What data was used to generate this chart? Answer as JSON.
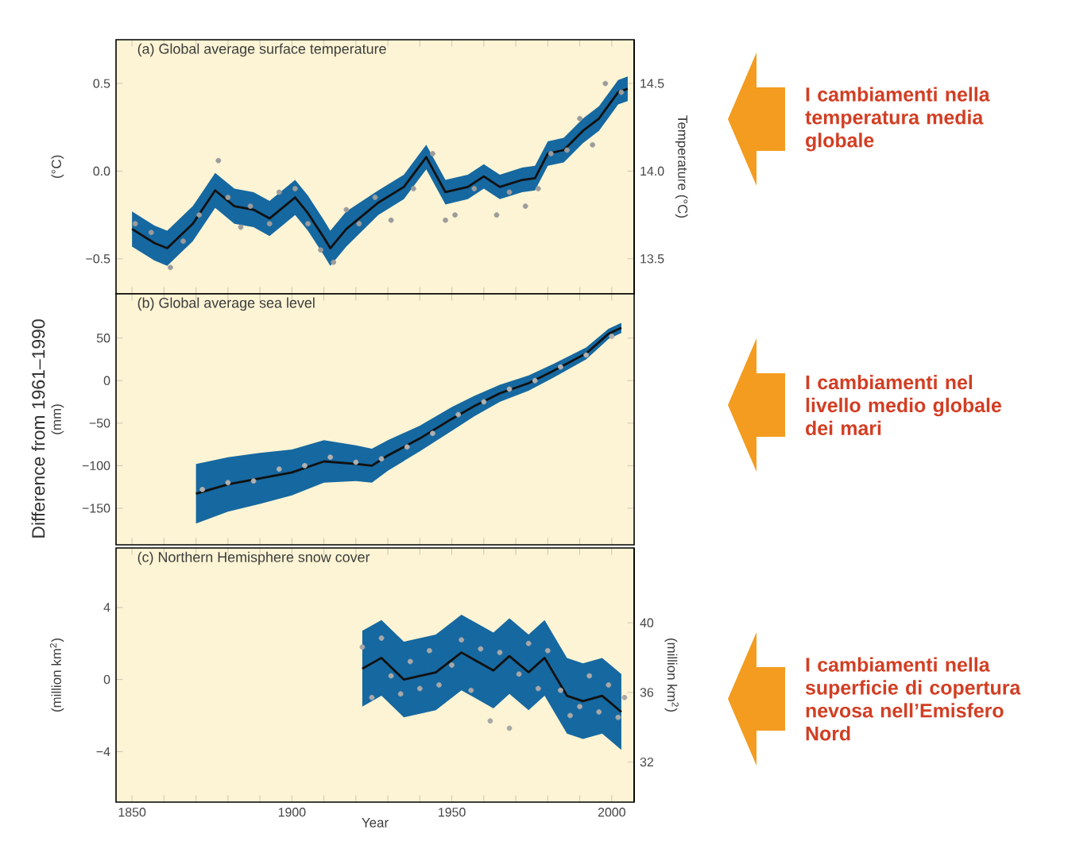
{
  "chart_data": [
    {
      "type": "line",
      "title": "(a) Global average surface temperature",
      "ylabel": "(°C)",
      "y2label": "Temperature (°C)",
      "annotations": [
        "I cambiamenti nella temperatura media globale"
      ],
      "xlim": [
        1845,
        2007
      ],
      "ylim": [
        -0.7,
        0.75
      ],
      "y2lim": [
        13.3,
        14.75
      ],
      "tick_labels": "y",
      "xticks": [
        {
          "value": 1850,
          "label": null
        },
        {
          "value": 1860,
          "label": null
        },
        {
          "value": 1870,
          "label": null
        },
        {
          "value": 1880,
          "label": null
        },
        {
          "value": 1890,
          "label": null
        },
        {
          "value": 1900,
          "label": null
        },
        {
          "value": 1910,
          "label": null
        },
        {
          "value": 1920,
          "label": null
        },
        {
          "value": 1930,
          "label": null
        },
        {
          "value": 1940,
          "label": null
        },
        {
          "value": 1950,
          "label": null
        },
        {
          "value": 1960,
          "label": null
        },
        {
          "value": 1970,
          "label": null
        },
        {
          "value": 1980,
          "label": null
        },
        {
          "value": 1990,
          "label": null
        },
        {
          "value": 2000,
          "label": null
        }
      ],
      "yticks": [
        {
          "value": -0.5,
          "label": "−0.5"
        },
        {
          "value": 0,
          "label": "0.0"
        },
        {
          "value": 0.5,
          "label": "0.5"
        }
      ],
      "y2ticks": [
        {
          "value": 13.5,
          "label": "13.5"
        },
        {
          "value": 14,
          "label": "14.0"
        },
        {
          "value": 14.5,
          "label": "14.5"
        }
      ],
      "series": [
        {
          "color": "#111111",
          "x": [
            1850,
            1857,
            1861,
            1869,
            1876,
            1882,
            1888,
            1893,
            1901,
            1905,
            1910,
            1912,
            1917,
            1927,
            1935,
            1942,
            1948,
            1955,
            1960,
            1965,
            1972,
            1976,
            1980,
            1985,
            1991,
            1996,
            2002,
            2005
          ],
          "values": [
            -0.33,
            -0.41,
            -0.44,
            -0.3,
            -0.11,
            -0.2,
            -0.22,
            -0.27,
            -0.15,
            -0.24,
            -0.38,
            -0.44,
            -0.33,
            -0.18,
            -0.09,
            0.08,
            -0.12,
            -0.09,
            -0.03,
            -0.09,
            -0.05,
            -0.04,
            0.1,
            0.12,
            0.23,
            0.3,
            0.45,
            0.47
          ],
          "lower": [
            -0.43,
            -0.51,
            -0.54,
            -0.4,
            -0.21,
            -0.3,
            -0.32,
            -0.37,
            -0.25,
            -0.34,
            -0.48,
            -0.54,
            -0.43,
            -0.25,
            -0.16,
            0.01,
            -0.19,
            -0.16,
            -0.1,
            -0.16,
            -0.12,
            -0.11,
            0.03,
            0.05,
            0.16,
            0.23,
            0.38,
            0.4
          ],
          "upper": [
            -0.23,
            -0.31,
            -0.34,
            -0.2,
            -0.01,
            -0.1,
            -0.12,
            -0.17,
            -0.05,
            -0.14,
            -0.28,
            -0.34,
            -0.23,
            -0.11,
            -0.02,
            0.15,
            -0.05,
            -0.02,
            0.04,
            -0.02,
            0.02,
            0.03,
            0.17,
            0.19,
            0.3,
            0.37,
            0.52,
            0.54
          ]
        },
        {
          "type": "scatter",
          "color": "#9c9c9c",
          "x": [
            1851,
            1856,
            1862,
            1866,
            1871,
            1877,
            1880,
            1884,
            1887,
            1893,
            1896,
            1901,
            1905,
            1909,
            1913,
            1917,
            1921,
            1926,
            1931,
            1938,
            1944,
            1948,
            1951,
            1957,
            1964,
            1968,
            1973,
            1977,
            1981,
            1986,
            1990,
            1994,
            1998,
            2003
          ],
          "values": [
            -0.3,
            -0.35,
            -0.55,
            -0.4,
            -0.25,
            0.06,
            -0.15,
            -0.32,
            -0.2,
            -0.3,
            -0.12,
            -0.1,
            -0.3,
            -0.45,
            -0.52,
            -0.22,
            -0.3,
            -0.15,
            -0.28,
            -0.1,
            0.1,
            -0.28,
            -0.25,
            -0.1,
            -0.25,
            -0.12,
            -0.2,
            -0.1,
            0.1,
            0.12,
            0.3,
            0.15,
            0.5,
            0.45
          ]
        }
      ]
    },
    {
      "type": "line",
      "title": "(b) Global average sea level",
      "ylabel": "(mm)",
      "annotations": [
        "I cambiamenti nel livello medio globale dei mari",
        "Difference from 1961–1990"
      ],
      "xlim": [
        1845,
        2007
      ],
      "ylim": [
        -193,
        102
      ],
      "tick_labels": "y",
      "xticks": [
        {
          "value": 1850,
          "label": null
        },
        {
          "value": 1860,
          "label": null
        },
        {
          "value": 1870,
          "label": null
        },
        {
          "value": 1880,
          "label": null
        },
        {
          "value": 1890,
          "label": null
        },
        {
          "value": 1900,
          "label": null
        },
        {
          "value": 1910,
          "label": null
        },
        {
          "value": 1920,
          "label": null
        },
        {
          "value": 1930,
          "label": null
        },
        {
          "value": 1940,
          "label": null
        },
        {
          "value": 1950,
          "label": null
        },
        {
          "value": 1960,
          "label": null
        },
        {
          "value": 1970,
          "label": null
        },
        {
          "value": 1980,
          "label": null
        },
        {
          "value": 1990,
          "label": null
        },
        {
          "value": 2000,
          "label": null
        }
      ],
      "yticks": [
        {
          "value": -150,
          "label": "−150"
        },
        {
          "value": -100,
          "label": "−100"
        },
        {
          "value": -50,
          "label": "−50"
        },
        0,
        50
      ],
      "series": [
        {
          "color": "#111111",
          "x": [
            1870,
            1880,
            1890,
            1900,
            1910,
            1920,
            1925,
            1930,
            1940,
            1950,
            1957,
            1965,
            1974,
            1982,
            1992,
            1999,
            2003
          ],
          "values": [
            -133,
            -122,
            -115,
            -108,
            -95,
            -98,
            -100,
            -88,
            -68,
            -45,
            -30,
            -15,
            -3,
            12,
            32,
            55,
            62
          ],
          "lower": [
            -168,
            -154,
            -145,
            -135,
            -120,
            -118,
            -120,
            -106,
            -83,
            -59,
            -42,
            -25,
            -12,
            4,
            25,
            49,
            56
          ],
          "upper": [
            -98,
            -90,
            -85,
            -81,
            -70,
            -76,
            -80,
            -70,
            -53,
            -31,
            -18,
            -5,
            6,
            20,
            39,
            61,
            68
          ]
        },
        {
          "type": "scatter",
          "color": "#b0b0b0",
          "x": [
            1872,
            1880,
            1888,
            1896,
            1904,
            1912,
            1920,
            1928,
            1936,
            1944,
            1952,
            1960,
            1968,
            1976,
            1984,
            1992,
            2000
          ],
          "values": [
            -128,
            -120,
            -118,
            -104,
            -100,
            -90,
            -96,
            -92,
            -78,
            -62,
            -40,
            -25,
            -10,
            0,
            16,
            30,
            52
          ]
        }
      ]
    },
    {
      "type": "line",
      "title": "(c) Northern Hemisphere snow cover",
      "ylabel": "(million km$^{2}$)",
      "y2label": "(million km$^{2}$)",
      "xlabel": "Year",
      "annotations": [
        "I cambiamenti nella superficie di copertura nevosa nell’Emisfero Nord"
      ],
      "xlim": [
        1845,
        2007
      ],
      "ylim": [
        -6.8,
        7.3
      ],
      "y2lim": [
        29.7,
        44.3
      ],
      "xticks": [
        1850,
        {
          "value": 1860,
          "label": null
        },
        {
          "value": 1870,
          "label": null
        },
        {
          "value": 1880,
          "label": null
        },
        {
          "value": 1890,
          "label": null
        },
        1900,
        {
          "value": 1910,
          "label": null
        },
        {
          "value": 1920,
          "label": null
        },
        {
          "value": 1930,
          "label": null
        },
        {
          "value": 1940,
          "label": null
        },
        1950,
        {
          "value": 1960,
          "label": null
        },
        {
          "value": 1970,
          "label": null
        },
        {
          "value": 1980,
          "label": null
        },
        {
          "value": 1990,
          "label": null
        },
        2000
      ],
      "yticks": [
        {
          "value": -4,
          "label": "−4"
        },
        0,
        4
      ],
      "y2ticks": [
        32,
        36,
        40
      ],
      "series": [
        {
          "color": "#111111",
          "x": [
            1922,
            1928,
            1935,
            1945,
            1953,
            1958,
            1963,
            1968,
            1974,
            1979,
            1986,
            1991,
            1997,
            2003
          ],
          "values": [
            0.6,
            1.2,
            0.0,
            0.4,
            1.5,
            1.0,
            0.5,
            1.3,
            0.4,
            1.2,
            -0.9,
            -1.2,
            -0.9,
            -1.8
          ],
          "lower": [
            -1.5,
            -0.9,
            -2.1,
            -1.7,
            -0.6,
            -1.1,
            -1.6,
            -0.8,
            -1.7,
            -0.9,
            -3.0,
            -3.3,
            -3.0,
            -3.9
          ],
          "upper": [
            2.7,
            3.3,
            2.1,
            2.5,
            3.6,
            3.1,
            2.6,
            3.4,
            2.5,
            3.3,
            1.2,
            0.9,
            1.2,
            0.3
          ]
        },
        {
          "type": "scatter",
          "color": "#a8a8a8",
          "x": [
            1922,
            1925,
            1928,
            1931,
            1934,
            1937,
            1940,
            1943,
            1946,
            1950,
            1953,
            1956,
            1959,
            1962,
            1965,
            1968,
            1971,
            1974,
            1977,
            1980,
            1984,
            1987,
            1990,
            1993,
            1996,
            1999,
            2002,
            2004
          ],
          "values": [
            1.8,
            -1.0,
            2.3,
            0.2,
            -0.8,
            1.0,
            -0.5,
            1.6,
            -0.3,
            0.8,
            2.2,
            -0.6,
            1.7,
            -2.3,
            1.5,
            -2.7,
            0.3,
            2.0,
            -0.5,
            1.6,
            -0.6,
            -2.0,
            -1.5,
            0.2,
            -1.8,
            -0.3,
            -2.1,
            -1.0
          ]
        }
      ]
    }
  ]
}
